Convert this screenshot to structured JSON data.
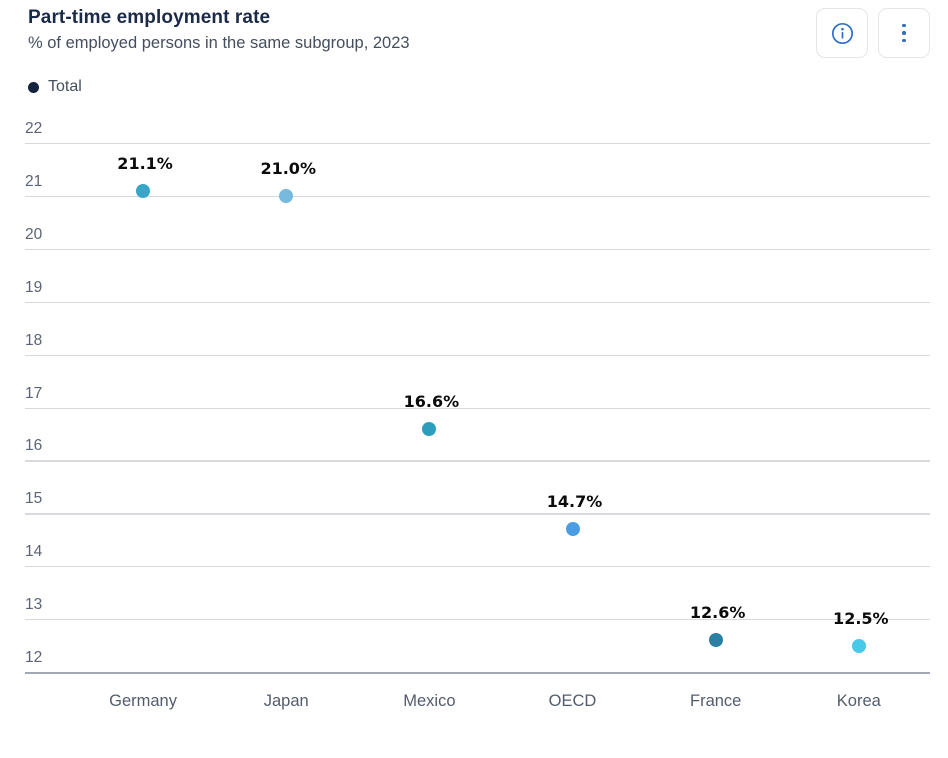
{
  "header": {
    "title": "Part-time employment rate",
    "subtitle": "% of employed persons in the same subgroup, 2023"
  },
  "toolbar": {
    "buttons": [
      {
        "name": "info",
        "icon": "info-icon"
      },
      {
        "name": "menu",
        "icon": "kebab-menu-icon"
      }
    ]
  },
  "legend": {
    "items": [
      {
        "label": "Total",
        "color": "#15233f"
      }
    ]
  },
  "chart_data": {
    "type": "scatter",
    "title": "Part-time employment rate",
    "subtitle": "% of employed persons in the same subgroup, 2023",
    "categories": [
      "Germany",
      "Japan",
      "Mexico",
      "OECD",
      "France",
      "Korea"
    ],
    "series": [
      {
        "name": "Total",
        "values": [
          21.1,
          21.0,
          16.6,
          14.7,
          12.6,
          12.5
        ],
        "data_labels": [
          "21.1%",
          "21.0%",
          "16.6%",
          "14.7%",
          "12.6%",
          "12.5%"
        ],
        "point_colors": [
          "#38a7c7",
          "#77bade",
          "#2d9dbd",
          "#4a9de2",
          "#2b7fa1",
          "#47c9ea"
        ]
      }
    ],
    "ylim": [
      12,
      22
    ],
    "yticks": [
      12,
      13,
      14,
      15,
      16,
      17,
      18,
      19,
      20,
      21,
      22
    ],
    "grid": true,
    "legend_position": "top-left",
    "xlabel": "",
    "ylabel": ""
  },
  "colors": {
    "title_text": "#1b2a47",
    "subtitle_text": "#454e5e",
    "axis_text": "#5c6473",
    "gridline": "#d7d9de",
    "baseline": "#a2a9b6",
    "data_label_text": "#0b0b0c",
    "legend_dot": "#15233f",
    "button_border": "#e3e5e9",
    "button_icon": "#2e6fc0"
  }
}
